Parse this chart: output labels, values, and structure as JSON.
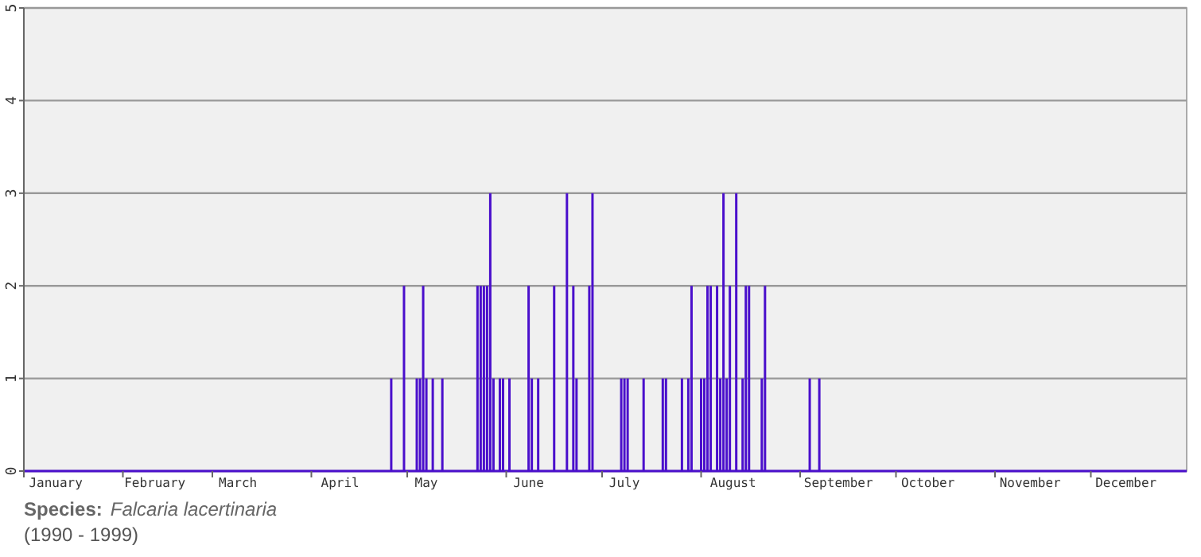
{
  "chart_data": {
    "type": "bar",
    "annotations": [
      "Species:",
      "Falcaria lacertinaria",
      "(1990 - 1999)"
    ],
    "x": [
      "--04-26",
      "--04-30",
      "--05-04",
      "--05-05",
      "--05-06",
      "--05-07",
      "--05-09",
      "--05-12",
      "--05-23",
      "--05-24",
      "--05-25",
      "--05-26",
      "--05-27",
      "--05-28",
      "--05-30",
      "--05-31",
      "--06-02",
      "--06-08",
      "--06-09",
      "--06-11",
      "--06-16",
      "--06-20",
      "--06-22",
      "--06-23",
      "--06-27",
      "--06-28",
      "--07-07",
      "--07-08",
      "--07-09",
      "--07-14",
      "--07-20",
      "--07-21",
      "--07-26",
      "--07-28",
      "--07-29",
      "--08-01",
      "--08-02",
      "--08-03",
      "--08-04",
      "--08-06",
      "--08-07",
      "--08-08",
      "--08-09",
      "--08-10",
      "--08-12",
      "--08-14",
      "--08-15",
      "--08-16",
      "--08-20",
      "--08-21",
      "--09-04",
      "--09-07"
    ],
    "values": [
      1,
      2,
      1,
      1,
      2,
      1,
      1,
      1,
      2,
      2,
      2,
      2,
      3,
      1,
      1,
      1,
      1,
      2,
      1,
      1,
      2,
      3,
      2,
      1,
      2,
      3,
      1,
      1,
      1,
      1,
      1,
      1,
      1,
      1,
      2,
      1,
      1,
      2,
      2,
      2,
      1,
      3,
      1,
      2,
      3,
      1,
      2,
      2,
      1,
      2,
      1,
      1
    ],
    "color": "#4a0fcc",
    "xlim": [
      "--01-01",
      "--12-31"
    ],
    "xticks": [
      {
        "value": "--01-01",
        "label": null
      },
      {
        "value": "--01-11",
        "label": "January"
      },
      {
        "value": "--02-01",
        "label": null
      },
      {
        "value": "--02-11",
        "label": "February"
      },
      {
        "value": "--03-01",
        "label": null
      },
      {
        "value": "--03-09",
        "label": "March"
      },
      {
        "value": "--04-01",
        "label": null
      },
      {
        "value": "--04-10",
        "label": "April"
      },
      {
        "value": "--05-01",
        "label": null
      },
      {
        "value": "--05-07",
        "label": "May"
      },
      {
        "value": "--06-01",
        "label": null
      },
      {
        "value": "--06-08",
        "label": "June"
      },
      {
        "value": "--07-01",
        "label": null
      },
      {
        "value": "--07-08",
        "label": "July"
      },
      {
        "value": "--08-01",
        "label": null
      },
      {
        "value": "--08-11",
        "label": "August"
      },
      {
        "value": "--09-01",
        "label": null
      },
      {
        "value": "--09-13",
        "label": "September"
      },
      {
        "value": "--10-01",
        "label": null
      },
      {
        "value": "--10-11",
        "label": "October"
      },
      {
        "value": "--11-01",
        "label": null
      },
      {
        "value": "--11-12",
        "label": "November"
      },
      {
        "value": "--12-01",
        "label": null
      },
      {
        "value": "--12-12",
        "label": "December"
      }
    ],
    "ylim": [
      0,
      5
    ],
    "yticks": [
      0,
      1,
      2,
      3,
      4,
      5
    ],
    "grid": "y"
  }
}
